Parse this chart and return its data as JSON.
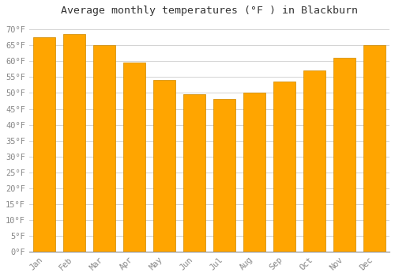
{
  "title": "Average monthly temperatures (°F ) in Blackburn",
  "months": [
    "Jan",
    "Feb",
    "Mar",
    "Apr",
    "May",
    "Jun",
    "Jul",
    "Aug",
    "Sep",
    "Oct",
    "Nov",
    "Dec"
  ],
  "values": [
    67.5,
    68.5,
    65.0,
    59.5,
    54.0,
    49.5,
    48.0,
    50.0,
    53.5,
    57.0,
    61.0,
    65.0
  ],
  "bar_color": "#FFA500",
  "bar_edge_color": "#CC8800",
  "background_color": "#FFFFFF",
  "plot_bg_color": "#FFFFFF",
  "grid_color": "#CCCCCC",
  "title_fontsize": 9.5,
  "tick_fontsize": 7.5,
  "tick_color": "#888888",
  "title_color": "#333333",
  "ylim": [
    0,
    73
  ],
  "yticks": [
    0,
    5,
    10,
    15,
    20,
    25,
    30,
    35,
    40,
    45,
    50,
    55,
    60,
    65,
    70
  ],
  "ytick_labels": [
    "0°F",
    "5°F",
    "10°F",
    "15°F",
    "20°F",
    "25°F",
    "30°F",
    "35°F",
    "40°F",
    "45°F",
    "50°F",
    "55°F",
    "60°F",
    "65°F",
    "70°F"
  ],
  "bar_width": 0.75
}
